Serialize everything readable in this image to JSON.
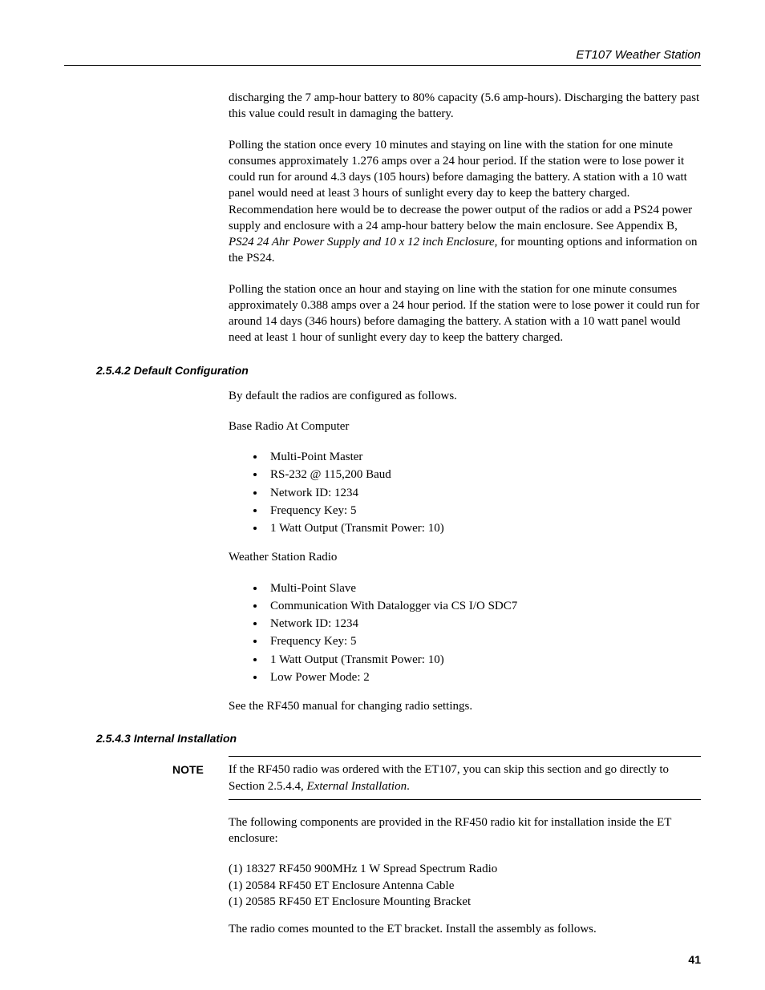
{
  "header": {
    "title": "ET107 Weather Station"
  },
  "paras": {
    "p1": "discharging the 7 amp-hour battery to 80% capacity (5.6 amp-hours). Discharging the battery past this value could result in damaging the battery.",
    "p2a": "Polling the station once every 10 minutes and staying on line with the station for one minute consumes approximately 1.276 amps over a 24 hour period. If the station were to lose power it could run for around 4.3 days (105 hours) before damaging the battery. A station with a 10 watt panel would need at least 3 hours of sunlight every day to keep the battery charged. Recommendation here would be to decrease the power output of the radios or add a PS24 power supply and enclosure with a 24 amp-hour battery below the main enclosure. See Appendix B, ",
    "p2b": "PS24 24 Ahr Power Supply and 10 x 12 inch Enclosure",
    "p2c": ", for mounting options and information on the PS24.",
    "p3": "Polling the station once an hour and staying on line with the station for one minute consumes approximately 0.388 amps over a 24 hour period. If the station were to lose power it could run for around 14 days (346 hours) before damaging the battery. A station with a 10 watt panel would need at least 1 hour of sunlight every day to keep the battery charged.",
    "p4": "By default the radios are configured as follows.",
    "p5": "Base Radio At Computer",
    "p6": "Weather Station Radio",
    "p7": "See the RF450 manual for changing radio settings.",
    "p8": "The following components are provided in the RF450 radio kit for installation inside the ET enclosure:",
    "p9": "The radio comes mounted to the ET bracket. Install the assembly as follows."
  },
  "sections": {
    "s2542": "2.5.4.2  Default Configuration",
    "s2543": "2.5.4.3  Internal Installation"
  },
  "bullets_base": [
    "Multi-Point Master",
    "RS-232 @ 115,200 Baud",
    "Network ID: 1234",
    "Frequency Key: 5",
    "1 Watt Output (Transmit Power: 10)"
  ],
  "bullets_station": [
    "Multi-Point Slave",
    "Communication With Datalogger via CS I/O SDC7",
    "Network ID: 1234",
    "Frequency Key: 5",
    "1 Watt Output (Transmit Power: 10)",
    "Low Power Mode: 2"
  ],
  "note": {
    "label": "NOTE",
    "text_a": "If the RF450 radio was ordered with the ET107, you can skip this section and go directly to Section 2.5.4.4, ",
    "text_b": "External Installation",
    "text_c": "."
  },
  "components": [
    "(1) 18327 RF450 900MHz 1 W Spread Spectrum Radio",
    "(1) 20584 RF450 ET Enclosure Antenna Cable",
    "(1) 20585 RF450 ET Enclosure Mounting Bracket"
  ],
  "page_number": "41"
}
